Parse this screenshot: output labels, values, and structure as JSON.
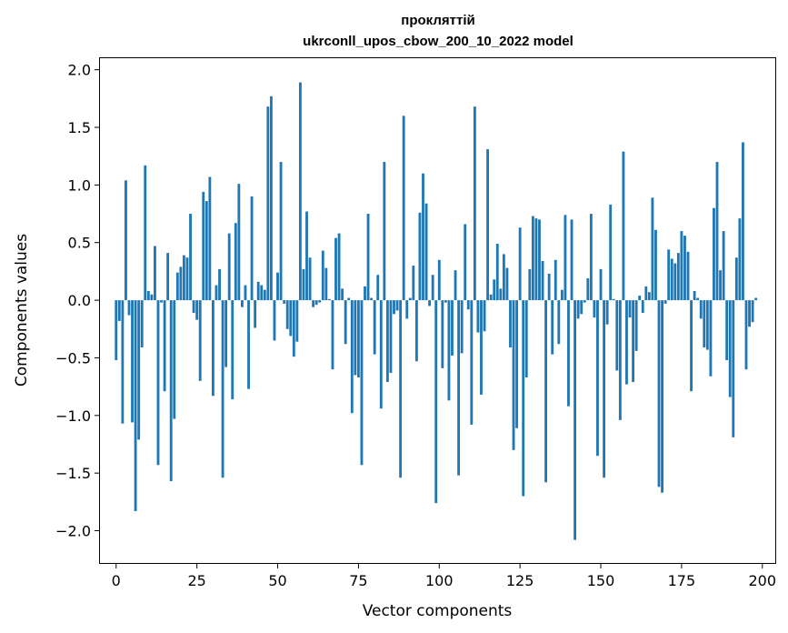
{
  "chart_data": {
    "type": "bar",
    "title": "прокляттій",
    "subtitle": "ukrconll_upos_cbow_200_10_2022 model",
    "xlabel": "Vector components",
    "ylabel": "Components values",
    "xlim": [
      -5,
      204
    ],
    "ylim": [
      -2.28,
      2.1
    ],
    "xticks": [
      0,
      25,
      50,
      75,
      100,
      125,
      150,
      175,
      200
    ],
    "xtick_labels": [
      "0",
      "25",
      "50",
      "75",
      "100",
      "125",
      "150",
      "175",
      "200"
    ],
    "yticks": [
      -2.0,
      -1.5,
      -1.0,
      -0.5,
      0.0,
      0.5,
      1.0,
      1.5,
      2.0
    ],
    "ytick_labels": [
      "−2.0",
      "−1.5",
      "−1.0",
      "−0.5",
      "0.0",
      "0.5",
      "1.0",
      "1.5",
      "2.0"
    ],
    "color": "#1f77b4",
    "x_start": 0,
    "values": [
      -0.52,
      -0.18,
      -1.07,
      1.04,
      -0.13,
      -1.06,
      -1.83,
      -1.21,
      -0.41,
      1.17,
      0.08,
      0.05,
      0.47,
      -1.43,
      -0.02,
      -0.79,
      0.41,
      -1.57,
      -1.03,
      0.24,
      0.29,
      0.39,
      0.37,
      0.75,
      -0.11,
      -0.17,
      -0.7,
      0.94,
      0.86,
      1.07,
      -0.83,
      0.13,
      0.27,
      -1.54,
      -0.58,
      0.58,
      -0.86,
      0.67,
      1.01,
      -0.06,
      0.13,
      -0.77,
      0.9,
      -0.24,
      0.16,
      0.13,
      0.09,
      1.68,
      1.77,
      -0.35,
      0.24,
      1.2,
      -0.03,
      -0.25,
      -0.31,
      -0.49,
      -0.36,
      1.89,
      0.27,
      0.77,
      0.37,
      -0.06,
      -0.04,
      -0.02,
      0.43,
      0.28,
      0.01,
      -0.6,
      0.54,
      0.58,
      0.1,
      -0.38,
      0.02,
      -0.98,
      -0.65,
      -0.67,
      -1.43,
      0.12,
      0.75,
      0.02,
      -0.47,
      0.22,
      -0.94,
      1.2,
      -0.71,
      -0.63,
      -0.12,
      -0.09,
      -1.54,
      1.6,
      -0.16,
      0.02,
      0.3,
      -0.53,
      0.76,
      1.1,
      0.84,
      -0.05,
      0.22,
      -1.76,
      0.35,
      -0.59,
      -0.02,
      -0.87,
      -0.48,
      0.26,
      -1.52,
      -0.46,
      0.66,
      -0.08,
      -1.08,
      1.68,
      -0.28,
      -0.82,
      -0.27,
      1.31,
      0.05,
      0.18,
      0.49,
      0.1,
      0.4,
      0.28,
      -0.41,
      -1.3,
      -1.11,
      0.63,
      -1.7,
      -0.67,
      0.27,
      0.73,
      0.71,
      0.7,
      0.34,
      -1.58,
      0.23,
      -0.47,
      0.35,
      -0.38,
      0.09,
      0.74,
      -0.92,
      0.7,
      -2.08,
      -0.16,
      -0.12,
      -0.02,
      0.19,
      0.75,
      -0.15,
      -1.35,
      0.27,
      -1.54,
      -0.21,
      0.83,
      0.01,
      -0.61,
      -1.04,
      1.29,
      -0.73,
      -0.15,
      -0.71,
      -0.44,
      0.04,
      -0.11,
      0.12,
      0.07,
      0.89,
      0.61,
      -1.62,
      -1.67,
      -0.03,
      0.44,
      0.36,
      0.32,
      0.41,
      0.6,
      0.56,
      0.42,
      -0.79,
      0.08,
      0.02,
      -0.16,
      -0.41,
      -0.43,
      -0.66,
      0.8,
      1.2,
      0.26,
      0.6,
      -0.52,
      -0.84,
      -1.19,
      0.37,
      0.71,
      1.37,
      -0.6,
      -0.23,
      -0.19,
      0.02
    ]
  }
}
